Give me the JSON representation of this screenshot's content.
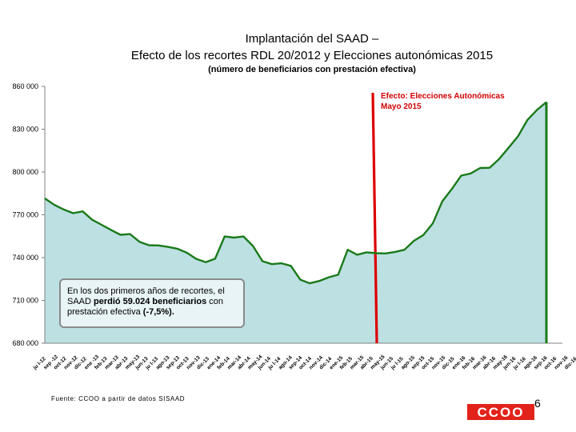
{
  "title_line1": "Implantación del SAAD –",
  "title_line2": "Efecto de los recortes RDL 20/2012 y Elecciones autonómicas 2015",
  "subtitle": "(número de beneficiarios con prestación efectiva)",
  "annotation_red_line1": "Efecto: Elecciones Autonómicas",
  "annotation_red_line2": "Mayo 2015",
  "note_text1": "En los dos primeros años de recortes, el SAAD ",
  "note_bold1": "perdió 59.024 beneficiarios",
  "note_text2": " con prestación efectiva ",
  "note_bold2": "(-7,5%).",
  "source": "Fuente: CCOO a partir de datos SISAAD",
  "logo_text": "CCOO",
  "page_number": "6",
  "colors": {
    "area": "#bde0e3",
    "line": "#1a7a1a",
    "red_marker": "#dd0000",
    "box_border": "#8a8a8a",
    "logo": "#e2231a"
  },
  "chart_data": {
    "type": "area",
    "ylim": [
      680000,
      860000
    ],
    "yticks": [
      "680 000",
      "710 000",
      "740 000",
      "770 000",
      "800 000",
      "830 000",
      "860 000"
    ],
    "grid": false,
    "x": [
      "jul-12",
      "ago-12",
      "sep-12",
      "oct-12",
      "nov-12",
      "dic-12",
      "ene-13",
      "feb-13",
      "mar-13",
      "abr-13",
      "may-13",
      "jun-13",
      "jul-13",
      "ago-13",
      "sep-13",
      "oct-13",
      "nov-13",
      "dic-13",
      "ene-14",
      "feb-14",
      "mar-14",
      "abr-14",
      "may-14",
      "jun-14",
      "jul-14",
      "ago-14",
      "sep-14",
      "oct-14",
      "nov-14",
      "dic-14",
      "ene-15",
      "feb-15",
      "mar-15",
      "abr-15",
      "may-15",
      "jun-15",
      "jul-15",
      "ago-15",
      "sep-15",
      "oct-15",
      "nov-15",
      "dic-15",
      "ene-16",
      "feb-16",
      "mar-16",
      "abr-16",
      "may-16",
      "jun-16",
      "jul-16",
      "ago-16",
      "sep-16",
      "oct-16",
      "nov-16",
      "dic-16"
    ],
    "x_tick_labels": [
      "ju l-12",
      "sep -12",
      "oct-12",
      "nov-12",
      "dic-12",
      "ene -13",
      "feb-13",
      "mar-13",
      "abr-13",
      "may-13",
      "jun-13",
      "ju l-13",
      "ago-13",
      "sep-13",
      "oct-13",
      "nov-13",
      "dic-13",
      "ene-14",
      "feb-14",
      "mar-14",
      "abr-14",
      "may-14",
      "jun-14",
      "ju l-14",
      "ago-14",
      "sep-14",
      "oct-14",
      "nov-14",
      "dic-14",
      "ene-15",
      "feb-15",
      "mar-15",
      "abr-15",
      "may-15",
      "jun-15",
      "ju l-15",
      "ago-15",
      "sep-15",
      "oct-15",
      "nov-15",
      "dic-15",
      "ene-16",
      "feb-16",
      "mar-16",
      "abr-16",
      "may-16",
      "jun-16",
      "ju l-16",
      "ago-16",
      "sep-16",
      "oct-16",
      "nov-16",
      "dic-16"
    ],
    "values": [
      781500,
      777000,
      773700,
      771100,
      772400,
      766500,
      763000,
      759400,
      756000,
      756500,
      751100,
      748700,
      748500,
      747500,
      746200,
      743400,
      739100,
      736800,
      739200,
      754800,
      754000,
      754800,
      748100,
      737500,
      735400,
      736000,
      734200,
      724500,
      722000,
      723600,
      726200,
      728000,
      745500,
      742000,
      743700,
      743100,
      742900,
      744000,
      745500,
      751800,
      755800,
      764000,
      779500,
      788000,
      797500,
      799000,
      802800,
      803000,
      809000,
      817000,
      825000,
      836500,
      843500,
      849000
    ]
  }
}
